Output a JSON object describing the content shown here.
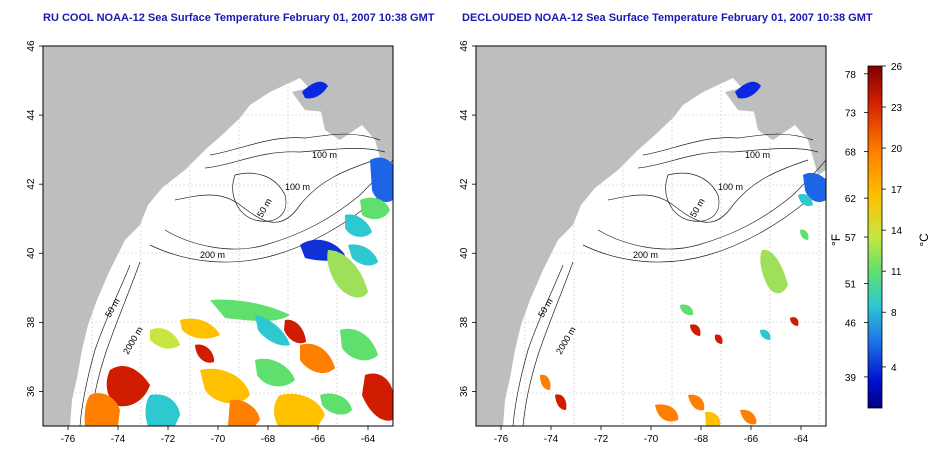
{
  "left_map": {
    "title": "RU COOL NOAA-12 Sea Surface Temperature February 01, 2007 10:38 GMT",
    "x_ticks": [
      "-76",
      "-74",
      "-72",
      "-70",
      "-68",
      "-66",
      "-64"
    ],
    "y_ticks": [
      "36",
      "38",
      "40",
      "42",
      "44",
      "46"
    ],
    "contour_labels": [
      "100 m",
      "100 m",
      "50 m",
      "200 m",
      "50 m",
      "2000 m"
    ]
  },
  "right_map": {
    "title": "DECLOUDED NOAA-12 Sea Surface Temperature February 01, 2007 10:38 GMT",
    "x_ticks": [
      "-76",
      "-74",
      "-72",
      "-70",
      "-68",
      "-66",
      "-64"
    ],
    "y_ticks": [
      "36",
      "38",
      "40",
      "42",
      "44",
      "46"
    ],
    "contour_labels": [
      "100 m",
      "100 m",
      "50 m",
      "200 m",
      "50 m",
      "2000 m"
    ]
  },
  "colorbar": {
    "f_label": "°F",
    "c_label": "°C",
    "f_ticks": [
      "78",
      "73",
      "68",
      "62",
      "57",
      "51",
      "46",
      "39"
    ],
    "c_ticks": [
      "26",
      "23",
      "20",
      "17",
      "14",
      "11",
      "8",
      "4"
    ],
    "colors": [
      "#800000",
      "#d01c00",
      "#ff7f00",
      "#ffc000",
      "#c8e640",
      "#5fe06e",
      "#2ec8d0",
      "#1e78e6",
      "#0010d0",
      "#000080"
    ]
  },
  "chart_data": {
    "type": "heatmap",
    "x_range": [
      -77,
      -63
    ],
    "y_range": [
      35,
      46
    ],
    "x_unit": "longitude",
    "y_unit": "latitude",
    "colorscale_celsius": [
      1,
      26
    ],
    "colorscale_fahrenheit": [
      35,
      79
    ]
  }
}
